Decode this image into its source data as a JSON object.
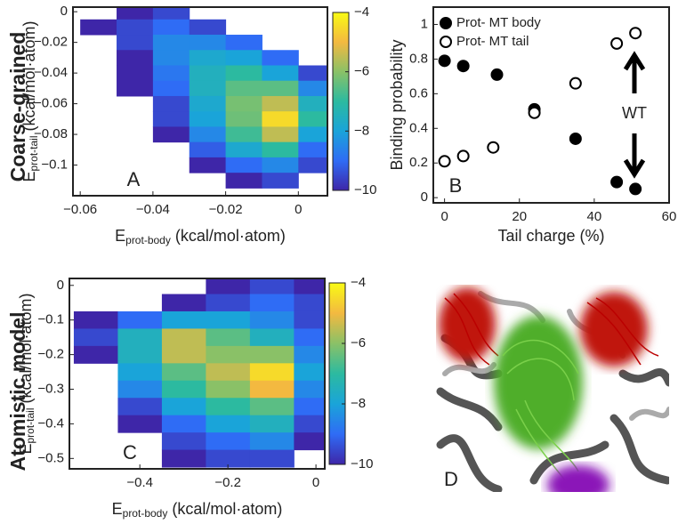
{
  "row_labels": [
    "Coarse-grained",
    "Atomistic model"
  ],
  "chart_data": [
    {
      "type": "contour",
      "panel_label": "A",
      "xlabel": {
        "symbol": "E",
        "subscript": "prot-body",
        "unit": " (kcal/mol·atom)"
      },
      "ylabel": {
        "symbol": "E",
        "subscript": "prot-tail",
        "unit": " (kcal/mol·atom)"
      },
      "xlim": [
        -0.062,
        0.008
      ],
      "xticks": [
        -0.06,
        -0.04,
        -0.02,
        0
      ],
      "ylim": [
        -0.12,
        0.003
      ],
      "yticks": [
        0,
        -0.02,
        -0.04,
        -0.06,
        -0.08,
        -0.1
      ],
      "x": [
        -0.055,
        -0.045,
        -0.035,
        -0.025,
        -0.015,
        -0.005,
        0.005
      ],
      "y": [
        0,
        -0.01,
        -0.02,
        -0.03,
        -0.04,
        -0.05,
        -0.06,
        -0.07,
        -0.08,
        -0.09,
        -0.1,
        -0.11
      ],
      "z": [
        [
          null,
          -10,
          -9.5,
          null,
          null,
          null,
          null
        ],
        [
          -10,
          -9.5,
          -9,
          -9.5,
          null,
          null,
          null
        ],
        [
          null,
          -9.5,
          -8.5,
          -8.5,
          -9,
          null,
          null
        ],
        [
          null,
          -10,
          -8.5,
          -7.8,
          -8,
          -9,
          null
        ],
        [
          null,
          -10,
          -8.8,
          -7.5,
          -7,
          -8,
          -9.5
        ],
        [
          null,
          -10,
          -9,
          -7.5,
          -6.5,
          -6.5,
          -8.5
        ],
        [
          null,
          null,
          -9.5,
          -7.8,
          -6.2,
          -5.5,
          -7.5
        ],
        [
          null,
          null,
          -9.5,
          -8,
          -6.3,
          -4.5,
          -7
        ],
        [
          null,
          null,
          -10,
          -8.5,
          -6.8,
          -5.5,
          -8
        ],
        [
          null,
          null,
          null,
          -9.2,
          -7.8,
          -7,
          -9
        ],
        [
          null,
          null,
          null,
          -10,
          -9,
          -8.5,
          -9.5
        ],
        [
          null,
          null,
          null,
          null,
          -10,
          -9.5,
          null
        ]
      ],
      "clim": [
        -10,
        -4
      ],
      "cticks": [
        -4,
        -6,
        -8,
        -10
      ],
      "colormap": [
        "#3e26a8",
        "#2f6cf5",
        "#1aa4d9",
        "#2cbaa0",
        "#8ac167",
        "#f3b940",
        "#f9fb14"
      ]
    },
    {
      "type": "scatter",
      "panel_label": "B",
      "xlabel": "Tail charge (%)",
      "ylabel": "Binding probability",
      "xlim": [
        -3,
        60
      ],
      "xticks": [
        0,
        20,
        40,
        60
      ],
      "ylim": [
        -0.03,
        1.1
      ],
      "yticks": [
        0,
        0.2,
        0.4,
        0.6,
        0.8,
        1
      ],
      "series": [
        {
          "name": "Prot- MT body",
          "color": "#000000",
          "marker": "filled",
          "x": [
            0,
            5,
            14,
            24,
            35,
            46,
            51
          ],
          "values": [
            0.79,
            0.76,
            0.71,
            0.51,
            0.34,
            0.09,
            0.05
          ]
        },
        {
          "name": "Prot- MT tail",
          "color": "#000000",
          "marker": "open",
          "x": [
            0,
            5,
            13,
            24,
            35,
            46,
            51
          ],
          "values": [
            0.21,
            0.24,
            0.29,
            0.49,
            0.66,
            0.89,
            0.95
          ]
        }
      ],
      "annotation": "WT"
    },
    {
      "type": "contour",
      "panel_label": "C",
      "xlabel": {
        "symbol": "E",
        "subscript": "prot-body",
        "unit": " (kcal/mol·atom)"
      },
      "ylabel": {
        "symbol": "E",
        "subscript": "prot-tail",
        "unit": " (kcal/mol·atom)"
      },
      "xlim": [
        -0.56,
        0.02
      ],
      "xticks": [
        -0.4,
        -0.2,
        0
      ],
      "ylim": [
        -0.53,
        0.02
      ],
      "yticks": [
        0,
        -0.1,
        -0.2,
        -0.3,
        -0.4,
        -0.5
      ],
      "x": [
        -0.5,
        -0.4,
        -0.3,
        -0.2,
        -0.1,
        0
      ],
      "y": [
        0,
        -0.05,
        -0.1,
        -0.15,
        -0.2,
        -0.25,
        -0.3,
        -0.35,
        -0.4,
        -0.45,
        -0.5
      ],
      "z": [
        [
          null,
          null,
          null,
          -10,
          -9.5,
          -10
        ],
        [
          null,
          null,
          -10,
          -9.5,
          -9,
          -9.5
        ],
        [
          -10,
          -9,
          -8,
          -8,
          -8.5,
          -9.5
        ],
        [
          -9.5,
          -7.5,
          -5.5,
          -6.5,
          -7.5,
          -9
        ],
        [
          -10,
          -7.5,
          -5.5,
          -6,
          -6,
          -8.5
        ],
        [
          null,
          -8,
          -6.5,
          -5.5,
          -4.5,
          -8
        ],
        [
          null,
          -8.5,
          -7,
          -6,
          -5,
          -8.5
        ],
        [
          null,
          -9.5,
          -8,
          -7,
          -6.5,
          -9
        ],
        [
          null,
          -10,
          -9,
          -8,
          -7.5,
          -9.5
        ],
        [
          null,
          null,
          -9.5,
          -9,
          -8.5,
          -10
        ],
        [
          null,
          null,
          -10,
          -9.5,
          -9.5,
          null
        ]
      ],
      "clim": [
        -10,
        -4
      ],
      "cticks": [
        -4,
        -6,
        -8,
        -10
      ],
      "colormap": [
        "#3e26a8",
        "#2f6cf5",
        "#1aa4d9",
        "#2cbaa0",
        "#8ac167",
        "#f3b940",
        "#f9fb14"
      ]
    },
    {
      "type": "image",
      "panel_label": "D"
    }
  ]
}
